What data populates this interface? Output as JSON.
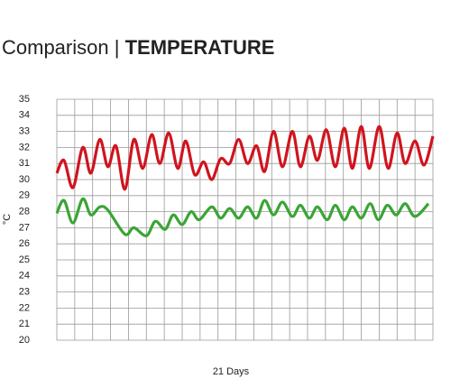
{
  "chart_data": {
    "type": "line",
    "title_prefix": "Comparison",
    "title_separator": "|",
    "title": "TEMPERATURE",
    "x_label": "21 Days",
    "y_label": "°C",
    "xlim": [
      0,
      21
    ],
    "xticks": [
      0,
      1,
      2,
      3,
      4,
      5,
      6,
      7,
      8,
      9,
      10,
      11,
      12,
      13,
      14,
      15,
      16,
      17,
      18,
      19,
      20,
      21
    ],
    "ylim": [
      20,
      35
    ],
    "yticks": [
      20,
      21,
      22,
      23,
      24,
      25,
      26,
      27,
      28,
      29,
      30,
      31,
      32,
      33,
      34,
      35
    ],
    "grid": true,
    "smooth": true,
    "series": [
      {
        "color": "#d0141e",
        "x": [
          0,
          0.4,
          0.9,
          1.45,
          1.9,
          2.4,
          2.85,
          3.3,
          3.8,
          4.3,
          4.8,
          5.3,
          5.75,
          6.25,
          6.75,
          7.2,
          7.7,
          8.2,
          8.65,
          9.15,
          9.65,
          10.15,
          10.65,
          11.15,
          11.6,
          12.1,
          12.6,
          13.15,
          13.6,
          14.1,
          14.55,
          15.05,
          15.55,
          16.05,
          16.5,
          17.0,
          17.45,
          18.0,
          18.5,
          19.0,
          19.45,
          20.0,
          20.5,
          21
        ],
        "values": [
          30.4,
          31.2,
          29.5,
          32.0,
          30.4,
          32.5,
          30.8,
          32.1,
          29.4,
          32.5,
          30.7,
          32.8,
          31.0,
          32.9,
          30.7,
          32.4,
          30.3,
          31.1,
          30.0,
          31.3,
          31.0,
          32.5,
          31.0,
          32.1,
          30.5,
          33.0,
          30.8,
          33.0,
          30.8,
          32.7,
          31.2,
          33.1,
          30.8,
          33.2,
          30.7,
          33.3,
          30.7,
          33.3,
          30.7,
          32.9,
          31.0,
          32.4,
          30.9,
          32.7
        ]
      },
      {
        "color": "#3aa535",
        "x": [
          0,
          0.4,
          0.9,
          1.45,
          1.9,
          2.4,
          2.85,
          3.8,
          4.3,
          5.0,
          5.5,
          6.05,
          6.5,
          7.0,
          7.5,
          7.95,
          8.65,
          9.15,
          9.65,
          10.15,
          10.65,
          11.15,
          11.6,
          12.1,
          12.6,
          13.15,
          13.6,
          14.1,
          14.55,
          15.1,
          15.55,
          16.05,
          16.5,
          17.0,
          17.5,
          17.95,
          18.45,
          18.95,
          19.45,
          20.0,
          20.75
        ],
        "values": [
          27.9,
          28.7,
          27.3,
          28.8,
          27.8,
          28.3,
          28.1,
          26.6,
          27.0,
          26.5,
          27.4,
          26.9,
          27.8,
          27.2,
          28.0,
          27.5,
          28.3,
          27.6,
          28.2,
          27.6,
          28.3,
          27.6,
          28.7,
          27.8,
          28.6,
          27.7,
          28.4,
          27.6,
          28.3,
          27.5,
          28.4,
          27.5,
          28.3,
          27.6,
          28.5,
          27.5,
          28.4,
          27.8,
          28.5,
          27.7,
          28.5
        ]
      }
    ]
  }
}
